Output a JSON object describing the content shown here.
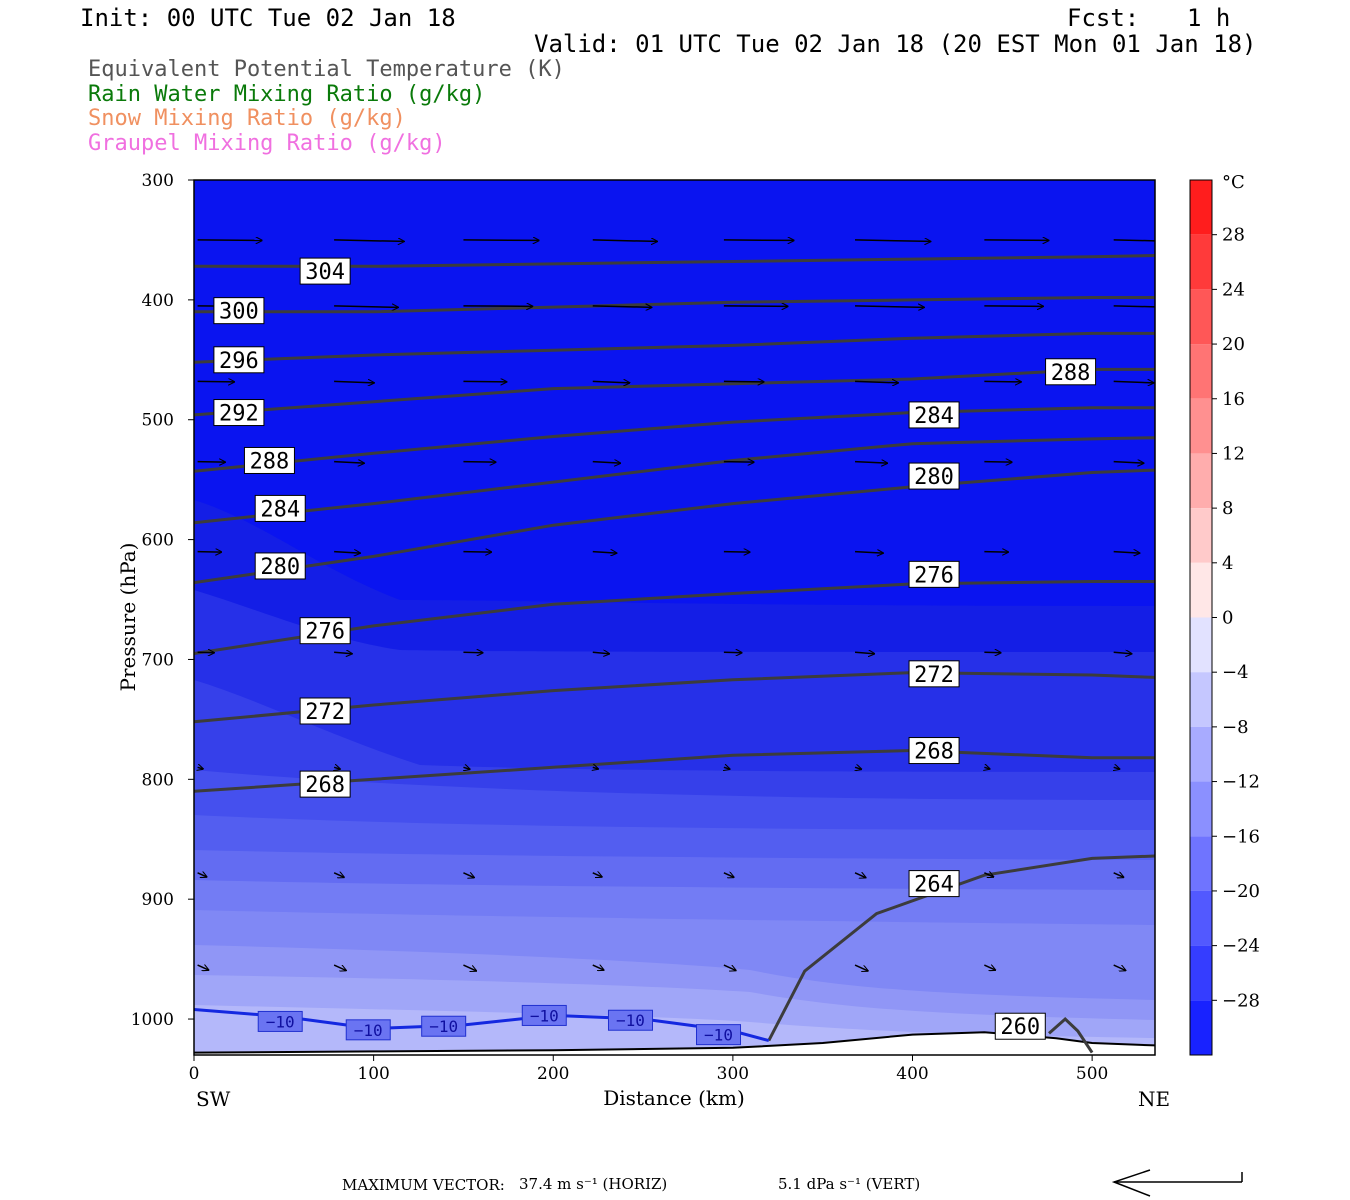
{
  "header": {
    "init": "Init: 00 UTC Tue 02 Jan 18",
    "fcst_label": "Fcst:",
    "fcst_value": "1 h",
    "valid": "Valid: 01 UTC Tue 02 Jan 18 (20 EST Mon 01 Jan 18)"
  },
  "legend": [
    {
      "label": "Equivalent Potential Temperature (K)",
      "color": "#555555"
    },
    {
      "label": "Rain Water Mixing Ratio (g/kg)",
      "color": "#0a7a0a"
    },
    {
      "label": "Snow Mixing Ratio (g/kg)",
      "color": "#f09060"
    },
    {
      "label": "Graupel Mixing Ratio (g/kg)",
      "color": "#f070e0"
    }
  ],
  "footer": {
    "max_vector_label": "MAXIMUM VECTOR:",
    "horiz": "37.4 m s⁻¹ (HORIZ)",
    "vert": "5.1 dPa s⁻¹ (VERT)"
  },
  "chart_data": {
    "type": "heatmap",
    "xlabel": "Distance (km)",
    "ylabel": "Pressure (hPa)",
    "x_ticks": [
      0,
      100,
      200,
      300,
      400,
      500
    ],
    "y_ticks": [
      300,
      400,
      500,
      600,
      700,
      800,
      900,
      1000
    ],
    "xlim": [
      0,
      535
    ],
    "ylim": [
      300,
      1030
    ],
    "y_reversed": true,
    "direction_left": "SW",
    "direction_right": "NE",
    "colorbar": {
      "unit": "°C",
      "tick_labels": [
        "28",
        "24",
        "20",
        "16",
        "12",
        "8",
        "4",
        "0",
        "−4",
        "−8",
        "−12",
        "−16",
        "−20",
        "−24",
        "−28"
      ],
      "tick_values": [
        28,
        24,
        20,
        16,
        12,
        8,
        4,
        0,
        -4,
        -8,
        -12,
        -16,
        -20,
        -24,
        -28
      ],
      "range": [
        -32,
        32
      ]
    },
    "theta_e_contours": [
      {
        "label": "304",
        "points": [
          [
            0,
            372
          ],
          [
            100,
            372
          ],
          [
            200,
            370
          ],
          [
            300,
            368
          ],
          [
            400,
            366
          ],
          [
            500,
            364
          ],
          [
            535,
            363
          ]
        ],
        "label_at": [
          73,
          376
        ]
      },
      {
        "label": "300",
        "points": [
          [
            0,
            410
          ],
          [
            100,
            410
          ],
          [
            200,
            406
          ],
          [
            300,
            402
          ],
          [
            400,
            400
          ],
          [
            500,
            398
          ],
          [
            535,
            398
          ]
        ],
        "label_at": [
          25,
          409
        ]
      },
      {
        "label": "296",
        "points": [
          [
            0,
            452
          ],
          [
            100,
            446
          ],
          [
            200,
            442
          ],
          [
            300,
            438
          ],
          [
            400,
            432
          ],
          [
            500,
            428
          ],
          [
            535,
            428
          ]
        ],
        "label_at": [
          25,
          450
        ]
      },
      {
        "label": "292",
        "points": [
          [
            0,
            496
          ],
          [
            100,
            485
          ],
          [
            200,
            474
          ],
          [
            300,
            470
          ],
          [
            400,
            466
          ],
          [
            500,
            458
          ],
          [
            535,
            458
          ]
        ],
        "label_at": [
          25,
          494
        ]
      },
      {
        "label": "288",
        "points": [
          [
            0,
            543
          ],
          [
            100,
            528
          ],
          [
            200,
            514
          ],
          [
            300,
            502
          ],
          [
            400,
            494
          ],
          [
            500,
            490
          ],
          [
            535,
            490
          ]
        ],
        "label_at": [
          42,
          534
        ]
      },
      {
        "label": "288",
        "points": [],
        "label_at": [
          488,
          460
        ]
      },
      {
        "label": "284",
        "points": [
          [
            0,
            586
          ],
          [
            100,
            570
          ],
          [
            200,
            552
          ],
          [
            300,
            534
          ],
          [
            400,
            520
          ],
          [
            500,
            516
          ],
          [
            535,
            515
          ]
        ],
        "label_at": [
          48,
          574
        ]
      },
      {
        "label": "284",
        "points": [],
        "label_at": [
          412,
          496
        ]
      },
      {
        "label": "280",
        "points": [
          [
            0,
            636
          ],
          [
            100,
            614
          ],
          [
            200,
            588
          ],
          [
            300,
            570
          ],
          [
            400,
            556
          ],
          [
            500,
            544
          ],
          [
            535,
            542
          ]
        ],
        "label_at": [
          48,
          622
        ]
      },
      {
        "label": "280",
        "points": [],
        "label_at": [
          412,
          547
        ]
      },
      {
        "label": "276",
        "points": [
          [
            0,
            695
          ],
          [
            100,
            672
          ],
          [
            200,
            654
          ],
          [
            300,
            645
          ],
          [
            400,
            637
          ],
          [
            500,
            635
          ],
          [
            535,
            635
          ]
        ],
        "label_at": [
          73,
          676
        ]
      },
      {
        "label": "276",
        "points": [],
        "label_at": [
          412,
          629
        ]
      },
      {
        "label": "272",
        "points": [
          [
            0,
            752
          ],
          [
            100,
            738
          ],
          [
            200,
            726
          ],
          [
            300,
            717
          ],
          [
            400,
            711
          ],
          [
            500,
            713
          ],
          [
            535,
            715
          ]
        ],
        "label_at": [
          73,
          743
        ]
      },
      {
        "label": "272",
        "points": [],
        "label_at": [
          412,
          712
        ]
      },
      {
        "label": "268",
        "points": [
          [
            0,
            810
          ],
          [
            100,
            800
          ],
          [
            200,
            790
          ],
          [
            300,
            780
          ],
          [
            400,
            776
          ],
          [
            500,
            782
          ],
          [
            535,
            782
          ]
        ],
        "label_at": [
          73,
          804
        ]
      },
      {
        "label": "268",
        "points": [],
        "label_at": [
          412,
          776
        ]
      },
      {
        "label": "264",
        "points": [
          [
            320,
            1018
          ],
          [
            340,
            960
          ],
          [
            380,
            912
          ],
          [
            440,
            880
          ],
          [
            500,
            866
          ],
          [
            535,
            864
          ]
        ],
        "label_at": [
          412,
          887
        ]
      },
      {
        "label": "260",
        "points": [
          [
            476,
            1012
          ],
          [
            485,
            1000
          ],
          [
            492,
            1010
          ],
          [
            500,
            1028
          ]
        ],
        "label_at": [
          460,
          1006
        ]
      }
    ],
    "temperature_contours": [
      {
        "label": "−10",
        "points": [
          [
            0,
            992
          ],
          [
            50,
            998
          ],
          [
            100,
            1008
          ],
          [
            150,
            1005
          ],
          [
            200,
            997
          ],
          [
            250,
            1000
          ],
          [
            300,
            1010
          ],
          [
            320,
            1018
          ]
        ],
        "label_positions": [
          [
            48,
            1002
          ],
          [
            97,
            1009
          ],
          [
            139,
            1006
          ],
          [
            195,
            997
          ],
          [
            243,
            1001
          ],
          [
            292,
            1013
          ]
        ]
      }
    ],
    "terrain": [
      [
        0,
        1028
      ],
      [
        100,
        1027
      ],
      [
        200,
        1026
      ],
      [
        300,
        1024
      ],
      [
        350,
        1020
      ],
      [
        400,
        1013
      ],
      [
        440,
        1011
      ],
      [
        480,
        1016
      ],
      [
        500,
        1020
      ],
      [
        535,
        1022
      ]
    ],
    "wind_rows": [
      {
        "p": 350,
        "dx": 70
      },
      {
        "p": 405,
        "dx": 64
      },
      {
        "p": 468,
        "dx": 40
      },
      {
        "p": 535,
        "dx": 30
      },
      {
        "p": 610,
        "dx": 26
      },
      {
        "p": 694,
        "dx": 18
      },
      {
        "p": 790,
        "dx": 6
      },
      {
        "p": 878,
        "dx": 10
      },
      {
        "p": 955,
        "dx": 12
      }
    ],
    "wind_columns": [
      2,
      78,
      150,
      222,
      295,
      368,
      440,
      512
    ]
  }
}
